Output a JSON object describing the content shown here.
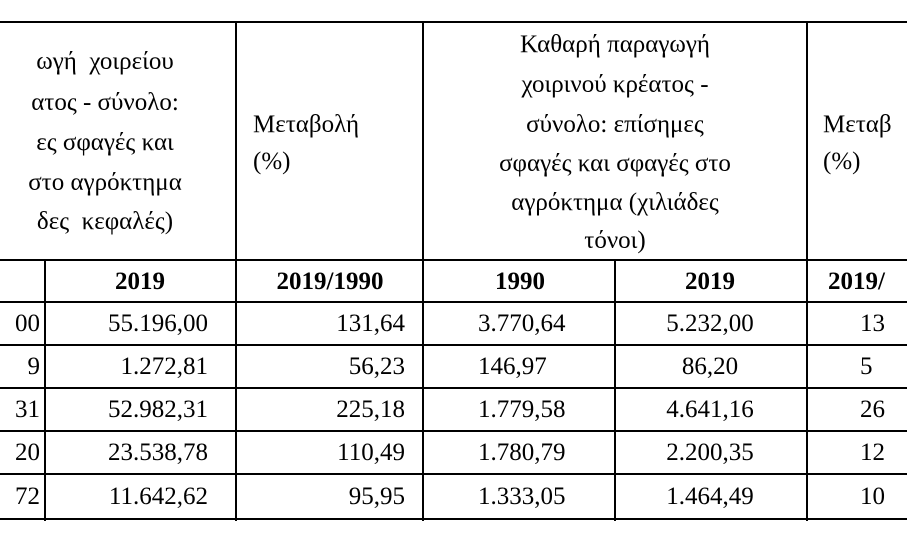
{
  "table": {
    "header": [
      {
        "lines": [
          "ωγή  χοιρείου",
          "ατος - σύνολο:",
          "ες σφαγές και",
          "στο αγρόκτημα",
          "δες  κεφαλές)"
        ]
      },
      {
        "lines": [
          "Μεταβολή",
          "(%)"
        ]
      },
      {
        "lines": [
          "Καθαρή παραγωγή",
          "χοιρινού κρέατος -",
          "σύνολο: επίσημες",
          "σφαγές και σφαγές στο",
          "αγρόκτημα (χιλιάδες",
          "τόνοι)"
        ]
      },
      {
        "lines": [
          "Μεταβ",
          "(%)"
        ]
      }
    ],
    "subheader": [
      "",
      "2019",
      "2019/1990",
      "1990",
      "2019",
      "2019/"
    ],
    "rows": [
      [
        "00",
        "55.196,00",
        "131,64",
        "3.770,64",
        "5.232,00",
        "13"
      ],
      [
        "9",
        "1.272,81",
        "56,23",
        "146,97",
        "86,20",
        "5"
      ],
      [
        "31",
        "52.982,31",
        "225,18",
        "1.779,58",
        "4.641,16",
        "26"
      ],
      [
        "20",
        "23.538,78",
        "110,49",
        "1.780,79",
        "2.200,35",
        "12"
      ],
      [
        "72",
        "11.642,62",
        "95,95",
        "1.333,05",
        "1.464,49",
        "10"
      ]
    ]
  }
}
